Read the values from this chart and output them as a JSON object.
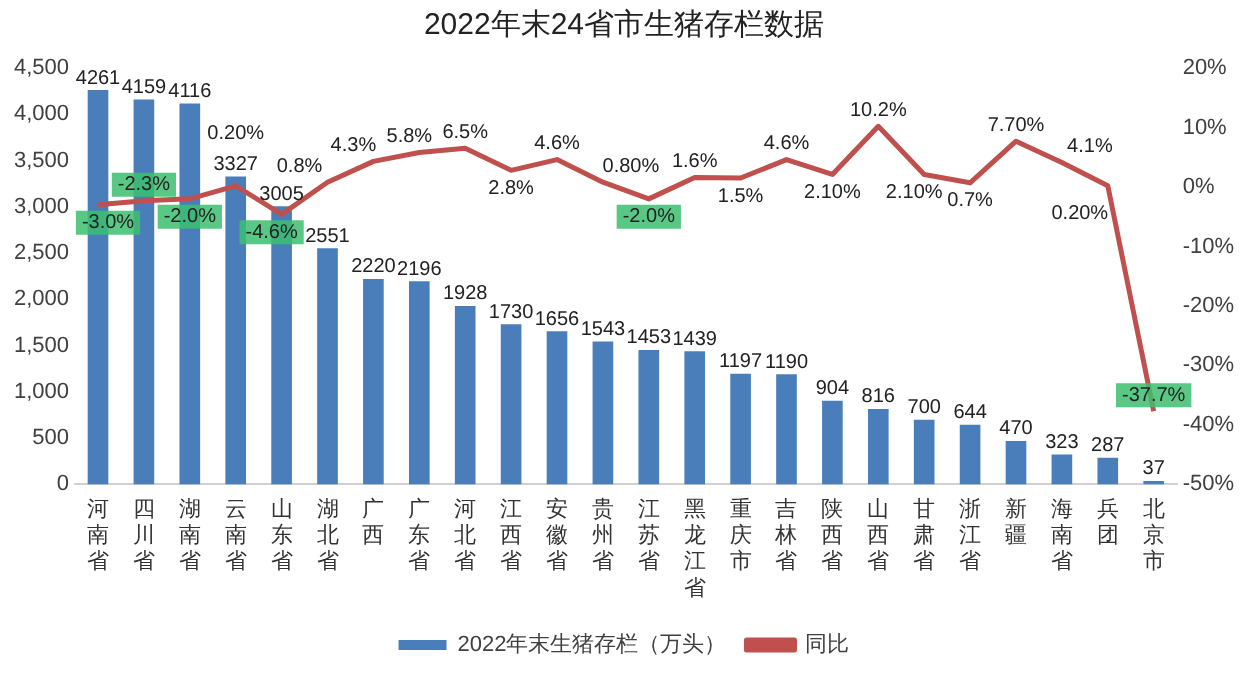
{
  "chart_data": {
    "type": "bar",
    "title": "2022年末24省市生猪存栏数据",
    "categories": [
      "河南省",
      "四川省",
      "湖南省",
      "云南省",
      "山东省",
      "湖北省",
      "广西",
      "广东省",
      "河北省",
      "江西省",
      "安徽省",
      "贵州省",
      "江苏省",
      "黑龙江省",
      "重庆市",
      "吉林省",
      "陕西省",
      "山西省",
      "甘肃省",
      "浙江省",
      "新疆",
      "海南省",
      "兵团",
      "北京市"
    ],
    "series": [
      {
        "name": "2022年末生猪存栏（万头）",
        "type": "bar",
        "color": "#4a7ebb",
        "values": [
          4261,
          4159,
          4116,
          3327,
          3005,
          2551,
          2220,
          2196,
          1928,
          1730,
          1656,
          1543,
          1453,
          1439,
          1197,
          1190,
          904,
          816,
          700,
          644,
          470,
          323,
          287,
          37
        ]
      },
      {
        "name": "同比",
        "type": "line",
        "axis": "y2",
        "color": "#c0504d",
        "values": [
          -3.0,
          -2.3,
          -2.0,
          0.2,
          -4.6,
          0.8,
          4.3,
          5.8,
          6.5,
          2.8,
          4.6,
          0.8,
          -2.0,
          1.6,
          1.5,
          4.6,
          2.1,
          10.2,
          2.1,
          0.7,
          7.7,
          4.1,
          0.2,
          -37.7
        ],
        "value_labels": [
          "-3.0%",
          "-2.3%",
          "-2.0%",
          "0.20%",
          "-4.6%",
          "0.8%",
          "4.3%",
          "5.8%",
          "6.5%",
          "2.8%",
          "4.6%",
          "0.80%",
          "-2.0%",
          "1.6%",
          "1.5%",
          "4.6%",
          "2.10%",
          "10.2%",
          "2.10%",
          "0.7%",
          "7.70%",
          "4.1%",
          "0.20%",
          "-37.7%"
        ]
      }
    ],
    "ylim": [
      0,
      4500
    ],
    "yticks": [
      {
        "value": 0,
        "label": "0"
      },
      {
        "value": 500,
        "label": "500"
      },
      {
        "value": 1000,
        "label": "1,000"
      },
      {
        "value": 1500,
        "label": "1,500"
      },
      {
        "value": 2000,
        "label": "2,000"
      },
      {
        "value": 2500,
        "label": "2,500"
      },
      {
        "value": 3000,
        "label": "3,000"
      },
      {
        "value": 3500,
        "label": "3,500"
      },
      {
        "value": 4000,
        "label": "4,000"
      },
      {
        "value": 4500,
        "label": "4,500"
      }
    ],
    "y2lim": [
      -50,
      20
    ],
    "y2ticks": [
      {
        "value": -50,
        "label": "-50%"
      },
      {
        "value": -40,
        "label": "-40%"
      },
      {
        "value": -30,
        "label": "-30%"
      },
      {
        "value": -20,
        "label": "-20%"
      },
      {
        "value": -10,
        "label": "-10%"
      },
      {
        "value": 0,
        "label": "0%"
      },
      {
        "value": 10,
        "label": "10%"
      },
      {
        "value": 20,
        "label": "20%"
      }
    ],
    "data_labels": true,
    "grid": false,
    "legend": "bottom",
    "marker": "none"
  }
}
